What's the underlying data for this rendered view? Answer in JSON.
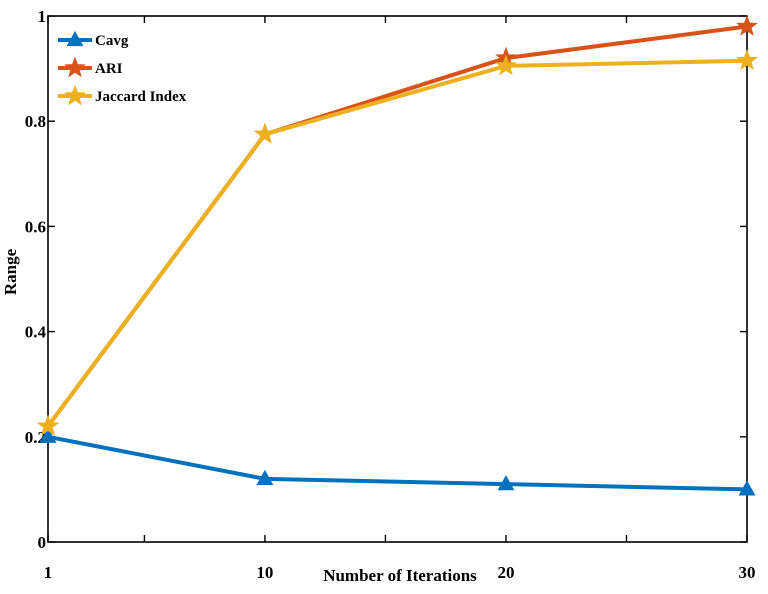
{
  "chart_data": {
    "type": "line",
    "xlabel": "Number of Iterations",
    "ylabel": "Range",
    "xlim": [
      1,
      30
    ],
    "ylim": [
      0,
      1
    ],
    "x_ticks": [
      1,
      10,
      20,
      30
    ],
    "x_minor_ticks": [
      5,
      15,
      25
    ],
    "y_ticks": [
      0,
      0.2,
      0.4,
      0.6,
      0.8,
      1
    ],
    "y_tick_labels": [
      "0",
      "0.2",
      "0.4",
      "0.6",
      "0.8",
      "1"
    ],
    "x": [
      1,
      10,
      20,
      30
    ],
    "grid": false,
    "legend_position": "top-left",
    "series": [
      {
        "name": "Cavg",
        "values": [
          0.2,
          0.12,
          0.11,
          0.1
        ],
        "color": "#0072BD",
        "marker": "triangle"
      },
      {
        "name": "ARI",
        "values": [
          0.22,
          0.775,
          0.92,
          0.98
        ],
        "color": "#D95319",
        "marker": "star"
      },
      {
        "name": "Jaccard Index",
        "values": [
          0.22,
          0.775,
          0.905,
          0.915
        ],
        "color": "#EDB120",
        "marker": "star"
      }
    ]
  }
}
